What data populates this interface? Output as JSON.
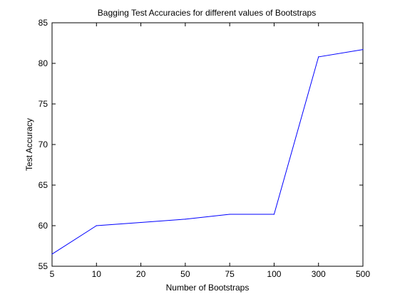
{
  "chart_data": {
    "type": "line",
    "title": "Bagging Test Accuracies for different values of Bootstraps",
    "xlabel": "Number of Bootstraps",
    "ylabel": "Test Accuracy",
    "categories": [
      "5",
      "10",
      "20",
      "50",
      "75",
      "100",
      "300",
      "500"
    ],
    "series": [
      {
        "values": [
          56.5,
          60.0,
          60.4,
          60.8,
          61.4,
          61.4,
          80.8,
          81.7
        ]
      }
    ],
    "ylim": [
      55,
      85
    ],
    "yticks": [
      55,
      60,
      65,
      70,
      75,
      80,
      85
    ],
    "grid": false,
    "line_color": "#0000ff"
  }
}
